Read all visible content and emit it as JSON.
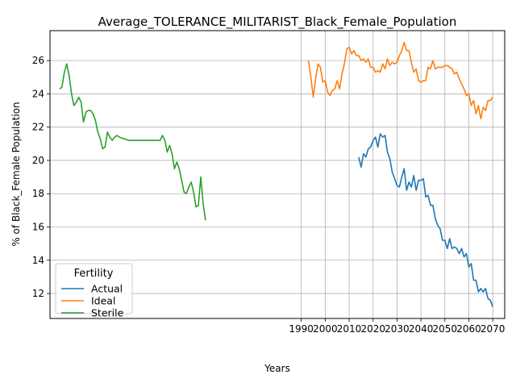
{
  "chart_data": {
    "type": "line",
    "title": "Average_TOLERANCE_MILITARIST_Black_Female_Population",
    "xlabel": "Years",
    "ylabel": "% of Black_Female Population",
    "xlim": [
      1885,
      2075
    ],
    "ylim": [
      10.5,
      27.8
    ],
    "xticks": [
      1990,
      2000,
      2010,
      2020,
      2030,
      2040,
      2050,
      2060,
      2070
    ],
    "yticks": [
      12,
      14,
      16,
      18,
      20,
      22,
      24,
      26
    ],
    "grid": true,
    "legend": {
      "title": "Fertility",
      "position": "lower-left"
    },
    "colors": {
      "Actual": "#1f77b4",
      "Ideal": "#ff7f0e",
      "Sterile": "#2ca02c"
    },
    "series": [
      {
        "name": "Actual",
        "x": [
          2014,
          2015,
          2016,
          2017,
          2018,
          2019,
          2020,
          2021,
          2022,
          2023,
          2024,
          2025,
          2026,
          2027,
          2028,
          2029,
          2030,
          2031,
          2032,
          2033,
          2034,
          2035,
          2036,
          2037,
          2038,
          2039,
          2040,
          2041,
          2042,
          2043,
          2044,
          2045,
          2046,
          2047,
          2048,
          2049,
          2050,
          2051,
          2052,
          2053,
          2054,
          2055,
          2056,
          2057,
          2058,
          2059,
          2060,
          2061,
          2062,
          2063,
          2064,
          2065,
          2066,
          2067,
          2068,
          2069,
          2070
        ],
        "y": [
          20.2,
          19.6,
          20.4,
          20.2,
          20.7,
          20.8,
          21.2,
          21.4,
          20.8,
          21.6,
          21.4,
          21.5,
          20.5,
          20.1,
          19.3,
          18.9,
          18.5,
          18.4,
          19.0,
          19.5,
          18.2,
          18.7,
          18.4,
          19.1,
          18.2,
          18.8,
          18.8,
          18.9,
          17.8,
          17.9,
          17.3,
          17.3,
          16.5,
          16.1,
          15.9,
          15.2,
          15.2,
          14.7,
          15.3,
          14.7,
          14.8,
          14.7,
          14.4,
          14.7,
          14.2,
          14.4,
          13.6,
          13.8,
          12.8,
          12.8,
          12.1,
          12.3,
          12.1,
          12.3,
          11.7,
          11.6,
          11.2
        ]
      },
      {
        "name": "Ideal",
        "x": [
          1993,
          1994,
          1995,
          1996,
          1997,
          1998,
          1999,
          2000,
          2001,
          2002,
          2003,
          2004,
          2005,
          2006,
          2007,
          2008,
          2009,
          2010,
          2011,
          2012,
          2013,
          2014,
          2015,
          2016,
          2017,
          2018,
          2019,
          2020,
          2021,
          2022,
          2023,
          2024,
          2025,
          2026,
          2027,
          2028,
          2029,
          2030,
          2031,
          2032,
          2033,
          2034,
          2035,
          2036,
          2037,
          2038,
          2039,
          2040,
          2041,
          2042,
          2043,
          2044,
          2045,
          2046,
          2047,
          2048,
          2049,
          2050,
          2051,
          2052,
          2053,
          2054,
          2055,
          2056,
          2057,
          2058,
          2059,
          2060,
          2061,
          2062,
          2063,
          2064,
          2065,
          2066,
          2067,
          2068,
          2069,
          2070
        ],
        "y": [
          26.0,
          25.0,
          23.8,
          24.9,
          25.8,
          25.6,
          24.7,
          24.8,
          24.1,
          23.9,
          24.2,
          24.3,
          24.8,
          24.3,
          25.2,
          25.8,
          26.7,
          26.8,
          26.4,
          26.6,
          26.3,
          26.3,
          26.0,
          26.1,
          25.9,
          26.1,
          25.6,
          25.6,
          25.3,
          25.4,
          25.3,
          25.8,
          25.5,
          26.1,
          25.7,
          25.9,
          25.8,
          25.9,
          26.3,
          26.6,
          27.1,
          26.6,
          26.6,
          25.9,
          25.3,
          25.5,
          24.8,
          24.7,
          24.8,
          24.8,
          25.6,
          25.5,
          26.0,
          25.5,
          25.6,
          25.6,
          25.6,
          25.7,
          25.7,
          25.6,
          25.5,
          25.2,
          25.3,
          24.9,
          24.6,
          24.3,
          23.9,
          24.0,
          23.3,
          23.6,
          22.8,
          23.3,
          22.5,
          23.2,
          23.0,
          23.6,
          23.6,
          23.8
        ]
      },
      {
        "name": "Sterile",
        "x": [
          1889,
          1890,
          1891,
          1892,
          1893,
          1894,
          1895,
          1896,
          1897,
          1898,
          1899,
          1900,
          1901,
          1902,
          1903,
          1904,
          1905,
          1906,
          1907,
          1908,
          1909,
          1910,
          1911,
          1912,
          1913,
          1914,
          1915,
          1916,
          1917,
          1918,
          1919,
          1920,
          1921,
          1922,
          1923,
          1924,
          1925,
          1926,
          1927,
          1928,
          1929,
          1930,
          1931,
          1932,
          1933,
          1934,
          1935,
          1936,
          1937,
          1938,
          1939,
          1940,
          1941,
          1942,
          1943,
          1944,
          1945,
          1946,
          1947,
          1948,
          1949,
          1950
        ],
        "y": [
          24.3,
          24.4,
          25.3,
          25.8,
          25.1,
          24.0,
          23.3,
          23.5,
          23.8,
          23.5,
          22.3,
          22.9,
          23.0,
          23.0,
          22.8,
          22.4,
          21.7,
          21.3,
          20.7,
          20.8,
          21.7,
          21.4,
          21.2,
          21.4,
          21.5,
          21.4,
          21.35,
          21.3,
          21.25,
          21.2,
          21.2,
          21.2,
          21.2,
          21.2,
          21.2,
          21.2,
          21.2,
          21.2,
          21.2,
          21.2,
          21.2,
          21.2,
          21.2,
          21.5,
          21.2,
          20.5,
          20.9,
          20.4,
          19.5,
          19.9,
          19.5,
          18.8,
          18.1,
          18.0,
          18.4,
          18.7,
          18.1,
          17.2,
          17.3,
          19.0,
          17.4,
          16.4
        ]
      }
    ]
  }
}
